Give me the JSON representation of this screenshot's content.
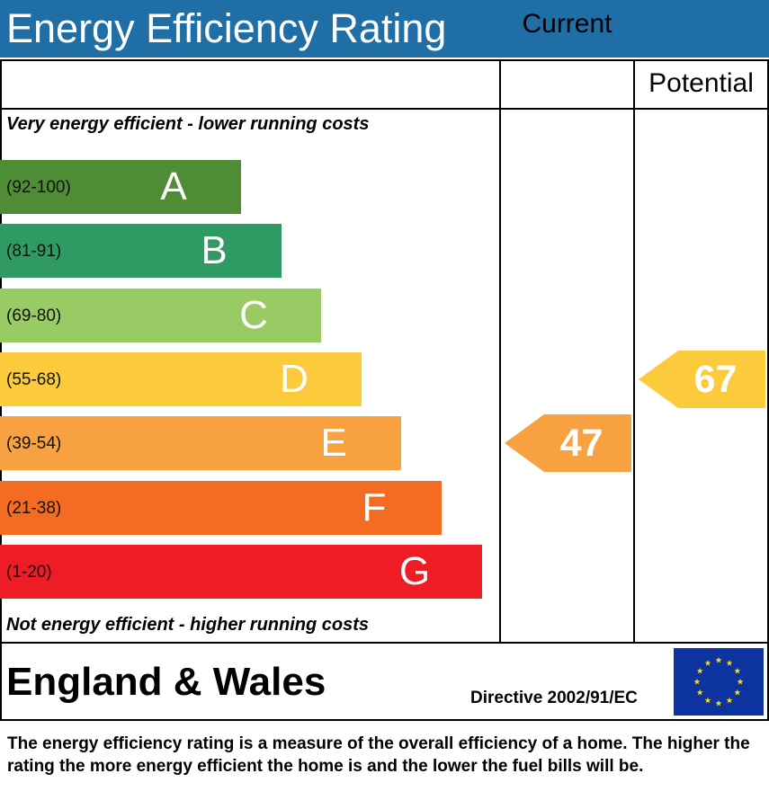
{
  "chart_data": {
    "type": "bar",
    "title": "Energy Efficiency Rating",
    "columns": [
      "Current",
      "Potential"
    ],
    "top_note": "Very energy efficient - lower running costs",
    "bottom_note": "Not energy efficient - higher running costs",
    "bands": [
      {
        "letter": "A",
        "range": "(92-100)",
        "color": "#4e8c36"
      },
      {
        "letter": "B",
        "range": "(81-91)",
        "color": "#2f9a62"
      },
      {
        "letter": "C",
        "range": "(69-80)",
        "color": "#98cb64"
      },
      {
        "letter": "D",
        "range": "(55-68)",
        "color": "#fbcb3b"
      },
      {
        "letter": "E",
        "range": "(39-54)",
        "color": "#f7a141"
      },
      {
        "letter": "F",
        "range": "(21-38)",
        "color": "#f36c21"
      },
      {
        "letter": "G",
        "range": "(1-20)",
        "color": "#ee1c25"
      }
    ],
    "current": {
      "value": "47",
      "band": "E",
      "color": "#f7a141"
    },
    "potential": {
      "value": "67",
      "band": "D",
      "color": "#fbcb3b"
    }
  },
  "footer": {
    "region": "England & Wales",
    "directive": "Directive 2002/91/EC",
    "flag": "eu-flag-icon"
  },
  "description": "The energy efficiency rating is a measure of the overall efficiency of a home. The higher the rating the more energy efficient the home is and the lower the fuel bills will be."
}
